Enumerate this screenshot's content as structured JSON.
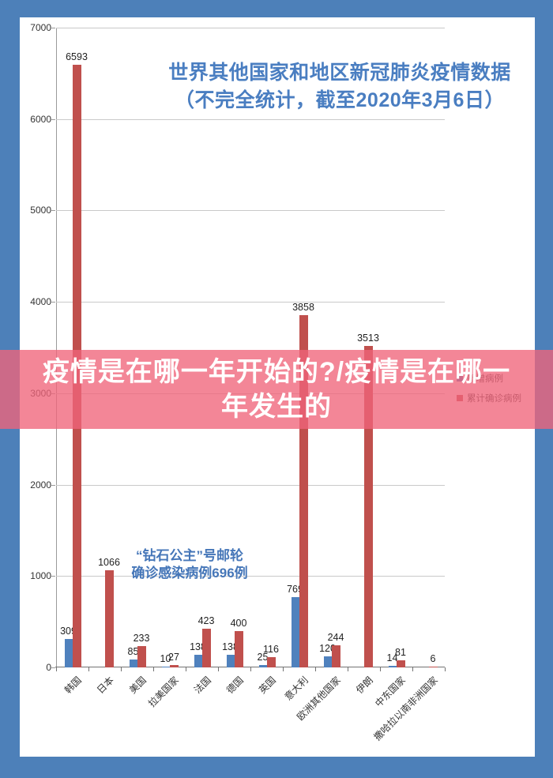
{
  "page": {
    "background_color": "#4d80b9",
    "card_color": "#ffffff"
  },
  "banner": {
    "lines": [
      "疫情是在哪一年开始的?/疫情是在哪一",
      "年发生的"
    ],
    "full_text": "疫情是在哪一年开始的?/疫情是在哪一年发生的",
    "background_color": "rgba(240,100,122,0.78)",
    "text_color": "#ffffff"
  },
  "chart_data": {
    "type": "bar",
    "title": "世界其他国家和地区新冠肺炎疫情数据（不完全统计，截至2020年3月6日）",
    "title_lines": [
      "世界其他国家和地区新冠肺炎疫情数据",
      "（不完全统计，截至2020年3月6日）"
    ],
    "title_color": "#4a7ec1",
    "categories": [
      "韩国",
      "日本",
      "美国",
      "拉美国家",
      "法国",
      "德国",
      "英国",
      "意大利",
      "欧洲其他国家",
      "伊朗",
      "中东国家",
      "撒哈拉以南非洲国家"
    ],
    "series": [
      {
        "name": "新增病例",
        "color": "#4f81bd",
        "values": [
          309,
          null,
          85,
          10,
          138,
          138,
          25,
          769,
          120,
          null,
          14,
          null
        ]
      },
      {
        "name": "累计确诊病例",
        "color": "#c0504d",
        "values": [
          6593,
          1066,
          233,
          27,
          423,
          400,
          116,
          3858,
          244,
          3513,
          81,
          6
        ]
      }
    ],
    "ylim": [
      0,
      7000
    ],
    "ytick_step": 1000,
    "grid": true,
    "legend_position": "right",
    "annotation": {
      "lines": [
        "“钻石公主”号邮轮",
        "确诊感染病例696例"
      ],
      "color": "#4576b8"
    }
  }
}
